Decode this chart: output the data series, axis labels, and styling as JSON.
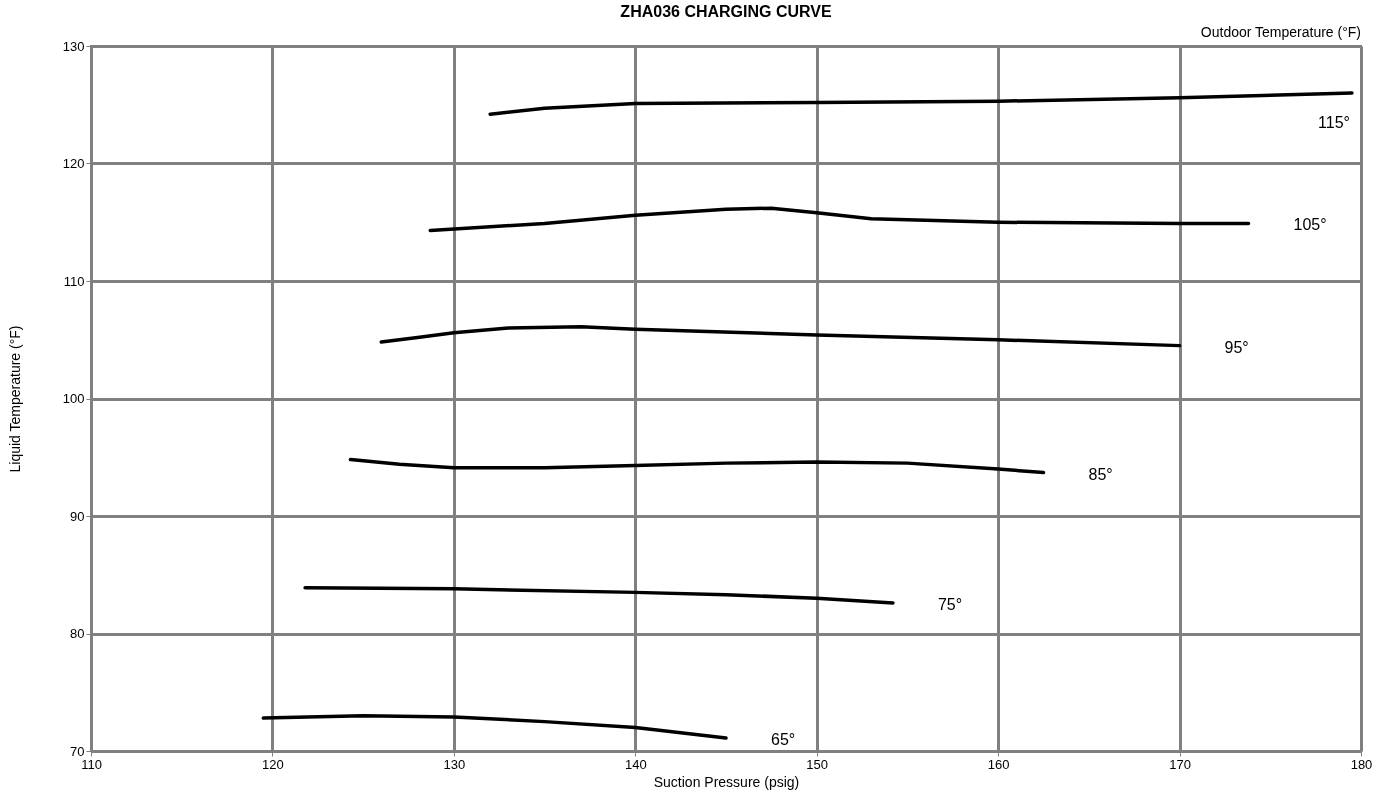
{
  "chart_data": {
    "type": "line",
    "title": "ZHA036 CHARGING CURVE",
    "xlabel": "Suction Pressure (psig)",
    "ylabel": "Liquid  Temperature  (°F)",
    "legend_title": "Outdoor Temperature (°F)",
    "xlim": [
      110,
      180
    ],
    "ylim": [
      70,
      130
    ],
    "xticks": [
      110,
      120,
      130,
      140,
      150,
      160,
      170,
      180
    ],
    "yticks": [
      70,
      80,
      90,
      100,
      110,
      120,
      130
    ],
    "grid": true,
    "marker": "none",
    "line_style": "solid",
    "series": [
      {
        "name": "115°",
        "color": "#000000",
        "x": [
          132,
          135,
          140,
          150,
          160,
          170,
          179.5
        ],
        "values": [
          124.2,
          124.7,
          125.1,
          125.2,
          125.3,
          125.6,
          126.0
        ]
      },
      {
        "name": "105°",
        "color": "#000000",
        "x": [
          128.7,
          135,
          140,
          145,
          147.5,
          150,
          153,
          160,
          170,
          173.8
        ],
        "values": [
          114.3,
          114.9,
          115.6,
          116.1,
          116.2,
          115.8,
          115.3,
          115.0,
          114.9,
          114.9
        ]
      },
      {
        "name": "95°",
        "color": "#000000",
        "x": [
          126,
          128,
          130,
          133,
          137,
          140,
          150,
          160,
          170
        ],
        "values": [
          104.8,
          105.2,
          105.6,
          106.0,
          106.1,
          105.9,
          105.4,
          105.0,
          104.5
        ]
      },
      {
        "name": "85°",
        "color": "#000000",
        "x": [
          124.3,
          127,
          130,
          135,
          140,
          145,
          150,
          155,
          160,
          162.5
        ],
        "values": [
          94.8,
          94.4,
          94.1,
          94.1,
          94.3,
          94.5,
          94.6,
          94.5,
          94.0,
          93.7
        ]
      },
      {
        "name": "75°",
        "color": "#000000",
        "x": [
          121.8,
          130,
          140,
          145,
          150,
          154.2
        ],
        "values": [
          83.9,
          83.8,
          83.5,
          83.3,
          83.0,
          82.6
        ]
      },
      {
        "name": "65°",
        "color": "#000000",
        "x": [
          119.5,
          125,
          130,
          135,
          140,
          145
        ],
        "values": [
          72.8,
          73.0,
          72.9,
          72.5,
          72.0,
          71.1
        ]
      }
    ]
  }
}
